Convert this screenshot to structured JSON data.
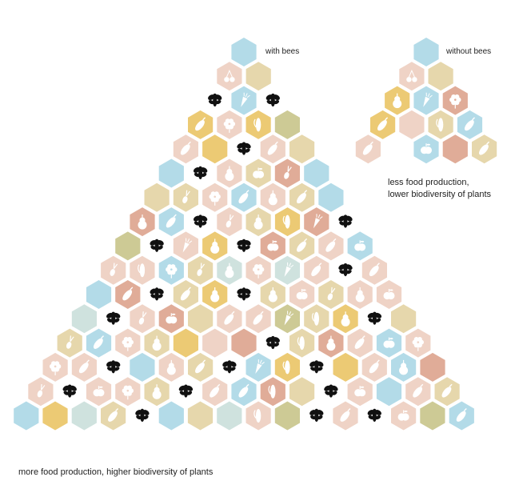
{
  "labels": {
    "with_bees": "with bees",
    "without_bees": "without bees",
    "less_line1": "less food production,",
    "less_line2": "lower biodiversity of plants",
    "more": "more food production, higher biodiversity of plants"
  },
  "colors": {
    "blue": "#b3dbe8",
    "peach": "#efd3c6",
    "sand": "#e6d7ac",
    "yellow": "#ecca74",
    "terracotta": "#e0ac98",
    "olive": "#cdca95",
    "mint": "#cfe2de",
    "bee": "#111111",
    "icon": "#ffffff"
  },
  "with_bees_pyramid": [
    [
      "blue"
    ],
    [
      "peach:cherry-icon",
      "sand"
    ],
    [
      "bee",
      "blue:carrot-icon",
      "bee"
    ],
    [
      "yellow:eggplant-icon",
      "peach:flower-icon",
      "yellow:corn-icon",
      "olive"
    ],
    [
      "peach:eggplant-icon",
      "yellow",
      "bee",
      "peach:eggplant-icon",
      "sand"
    ],
    [
      "blue",
      "bee",
      "peach:pear-icon",
      "sand:apple-icon",
      "terracotta:radish-icon",
      "blue"
    ],
    [
      "sand",
      "sand:radish-icon",
      "peach:flower-icon",
      "blue:eggplant-icon",
      "peach:pear-icon",
      "sand:eggplant-icon",
      "blue"
    ],
    [
      "terracotta:pear-icon",
      "blue:eggplant-icon",
      "bee",
      "peach:radish-icon",
      "sand:pear-icon",
      "yellow:corn-icon",
      "terracotta:carrot-icon",
      "bee"
    ],
    [
      "olive",
      "bee",
      "peach:carrot-icon",
      "yellow:pear-icon",
      "bee",
      "terracotta:apple-icon",
      "sand:eggplant-icon",
      "peach:eggplant-icon",
      "blue:apple-icon"
    ],
    [
      "peach:radish-icon",
      "peach:corn-icon",
      "blue:flower-icon",
      "sand:radish-icon",
      "mint:pear-icon",
      "peach:flower-icon",
      "mint:carrot-icon",
      "peach:eggplant-icon",
      "bee",
      "peach:eggplant-icon"
    ],
    [
      "blue",
      "terracotta:eggplant-icon",
      "bee",
      "sand:eggplant-icon",
      "yellow:pear-icon",
      "bee",
      "sand:pear-icon",
      "peach:apple-icon",
      "sand:radish-icon",
      "peach:pear-icon",
      "peach:apple-icon"
    ],
    [
      "mint",
      "bee",
      "peach:radish-icon",
      "terracotta:apple-icon",
      "sand",
      "peach:eggplant-icon",
      "peach:eggplant-icon",
      "olive:carrot-icon",
      "sand:corn-icon",
      "yellow:pear-icon",
      "bee",
      "sand"
    ],
    [
      "sand:radish-icon",
      "blue:eggplant-icon",
      "peach:flower-icon",
      "sand:pear-icon",
      "yellow",
      "peach",
      "terracotta",
      "bee",
      "sand:corn-icon",
      "terracotta:pear-icon",
      "peach:eggplant-icon",
      "blue:apple-icon",
      "peach:flower-icon"
    ],
    [
      "peach:flower-icon",
      "peach:eggplant-icon",
      "bee",
      "blue",
      "peach:pear-icon",
      "sand:eggplant-icon",
      "bee",
      "blue:carrot-icon",
      "yellow:corn-icon",
      "bee",
      "yellow",
      "peach:eggplant-icon",
      "blue:pear-icon",
      "terracotta"
    ],
    [
      "peach:radish-icon",
      "bee",
      "peach:apple-icon",
      "peach:flower-icon",
      "sand:pear-icon",
      "bee",
      "peach:eggplant-icon",
      "blue:eggplant-icon",
      "terracotta:corn-icon",
      "sand",
      "bee",
      "peach:apple-icon",
      "blue",
      "peach:eggplant-icon",
      "sand:eggplant-icon"
    ],
    [
      "blue",
      "yellow",
      "mint",
      "sand:eggplant-icon",
      "bee",
      "blue",
      "sand",
      "mint",
      "peach:corn-icon",
      "olive",
      "bee",
      "peach:eggplant-icon",
      "bee",
      "peach:apple-icon",
      "olive",
      "blue:eggplant-icon"
    ]
  ],
  "without_bees_pyramid": [
    [
      "blue"
    ],
    [
      "peach:cherry-icon",
      "sand"
    ],
    [
      "yellow:pear-icon",
      "blue:carrot-icon",
      "terracotta:flower-icon"
    ],
    [
      "yellow:eggplant-icon",
      "peach",
      "sand:corn-icon",
      "blue:eggplant-icon"
    ],
    [
      "peach:eggplant-icon",
      "",
      "blue:apple-icon",
      "terracotta",
      "sand:eggplant-icon"
    ]
  ]
}
